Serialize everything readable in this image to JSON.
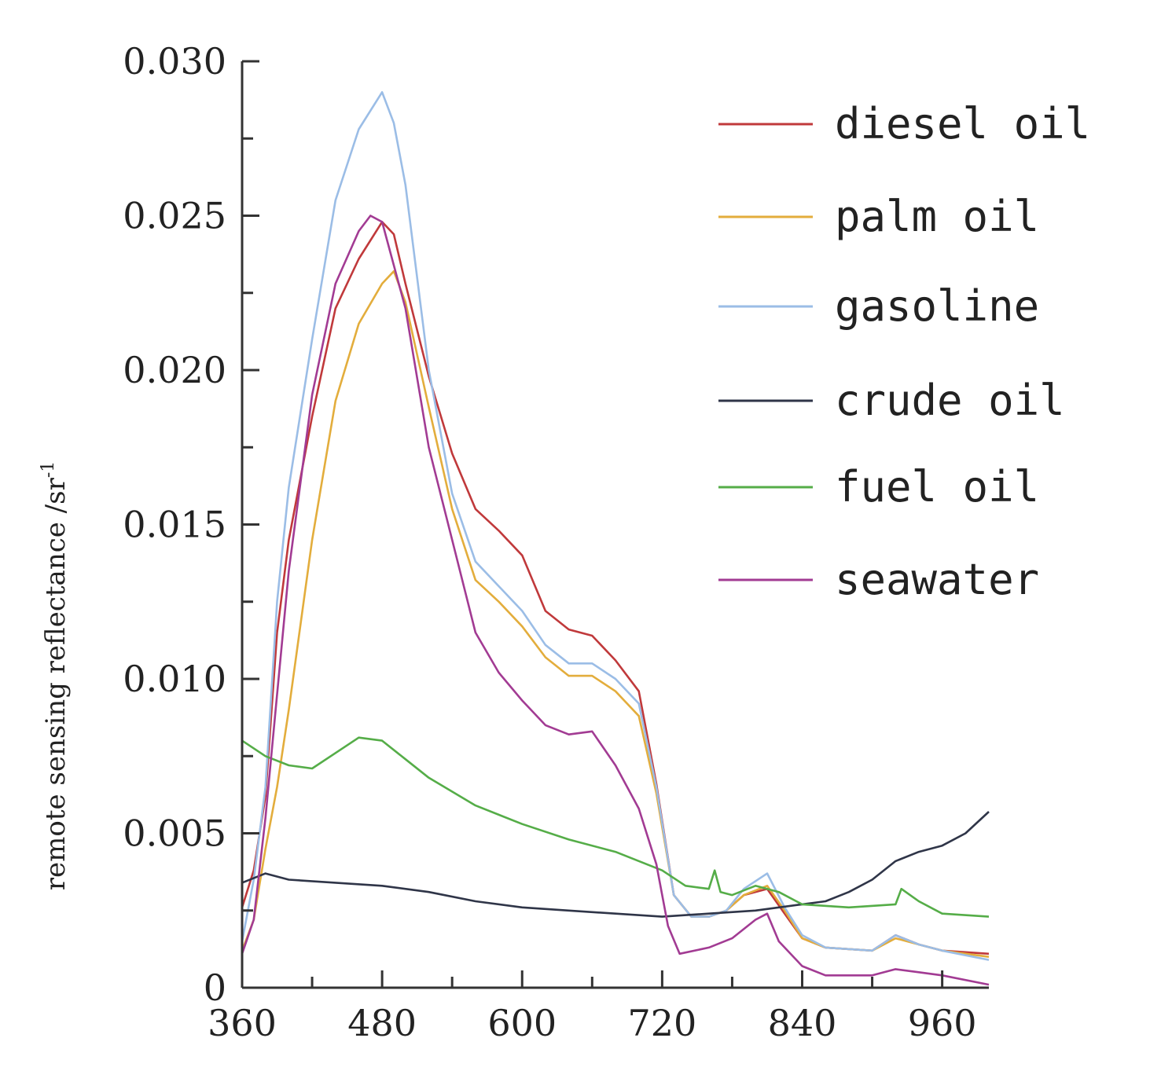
{
  "chart_data": {
    "type": "line",
    "title": "",
    "xlabel": "",
    "ylabel": "remote sensing reflectance /sr",
    "ylabel_superscript": "-1",
    "xlim": [
      360,
      1000
    ],
    "ylim": [
      0,
      0.03
    ],
    "x_ticks": [
      "360",
      "480",
      "600",
      "720",
      "840",
      "960"
    ],
    "y_ticks": [
      "0",
      "0.005",
      "0.010",
      "0.015",
      "0.020",
      "0.025",
      "0.030"
    ],
    "legend_position": "top-right",
    "grid": false,
    "series": [
      {
        "name": "diesel oil",
        "color": "#c0393b",
        "points": [
          [
            360,
            0.0026
          ],
          [
            370,
            0.0038
          ],
          [
            380,
            0.0062
          ],
          [
            390,
            0.0115
          ],
          [
            400,
            0.0145
          ],
          [
            420,
            0.0185
          ],
          [
            440,
            0.022
          ],
          [
            460,
            0.0236
          ],
          [
            480,
            0.0248
          ],
          [
            490,
            0.0244
          ],
          [
            500,
            0.0228
          ],
          [
            520,
            0.0198
          ],
          [
            540,
            0.0173
          ],
          [
            560,
            0.0155
          ],
          [
            580,
            0.0148
          ],
          [
            600,
            0.014
          ],
          [
            620,
            0.0122
          ],
          [
            640,
            0.0116
          ],
          [
            660,
            0.0114
          ],
          [
            680,
            0.0106
          ],
          [
            700,
            0.0096
          ],
          [
            715,
            0.0066
          ],
          [
            730,
            0.003
          ],
          [
            745,
            0.0023
          ],
          [
            760,
            0.0023
          ],
          [
            775,
            0.0025
          ],
          [
            790,
            0.003
          ],
          [
            810,
            0.0032
          ],
          [
            825,
            0.0024
          ],
          [
            840,
            0.0016
          ],
          [
            860,
            0.0013
          ],
          [
            900,
            0.0012
          ],
          [
            920,
            0.0017
          ],
          [
            940,
            0.0014
          ],
          [
            960,
            0.0012
          ],
          [
            1000,
            0.0011
          ]
        ]
      },
      {
        "name": "palm oil",
        "color": "#e3ad3c",
        "points": [
          [
            360,
            0.0012
          ],
          [
            370,
            0.0022
          ],
          [
            380,
            0.0045
          ],
          [
            390,
            0.0065
          ],
          [
            400,
            0.009
          ],
          [
            420,
            0.0145
          ],
          [
            440,
            0.019
          ],
          [
            460,
            0.0215
          ],
          [
            480,
            0.0228
          ],
          [
            490,
            0.0232
          ],
          [
            500,
            0.0222
          ],
          [
            520,
            0.0188
          ],
          [
            540,
            0.0155
          ],
          [
            560,
            0.0132
          ],
          [
            580,
            0.0125
          ],
          [
            600,
            0.0117
          ],
          [
            620,
            0.0107
          ],
          [
            640,
            0.0101
          ],
          [
            660,
            0.0101
          ],
          [
            680,
            0.0096
          ],
          [
            700,
            0.0088
          ],
          [
            715,
            0.0063
          ],
          [
            730,
            0.003
          ],
          [
            745,
            0.0023
          ],
          [
            760,
            0.0023
          ],
          [
            775,
            0.0025
          ],
          [
            790,
            0.003
          ],
          [
            810,
            0.0033
          ],
          [
            825,
            0.0025
          ],
          [
            840,
            0.0016
          ],
          [
            860,
            0.0013
          ],
          [
            900,
            0.0012
          ],
          [
            920,
            0.0016
          ],
          [
            940,
            0.0014
          ],
          [
            960,
            0.0012
          ],
          [
            1000,
            0.001
          ]
        ]
      },
      {
        "name": "gasoline",
        "color": "#9bbde6",
        "points": [
          [
            360,
            0.0015
          ],
          [
            370,
            0.0035
          ],
          [
            380,
            0.0065
          ],
          [
            390,
            0.0125
          ],
          [
            400,
            0.0162
          ],
          [
            420,
            0.021
          ],
          [
            440,
            0.0255
          ],
          [
            460,
            0.0278
          ],
          [
            480,
            0.029
          ],
          [
            490,
            0.028
          ],
          [
            500,
            0.026
          ],
          [
            520,
            0.02
          ],
          [
            540,
            0.016
          ],
          [
            560,
            0.0138
          ],
          [
            580,
            0.013
          ],
          [
            600,
            0.0122
          ],
          [
            620,
            0.0111
          ],
          [
            640,
            0.0105
          ],
          [
            660,
            0.0105
          ],
          [
            680,
            0.01
          ],
          [
            700,
            0.0092
          ],
          [
            715,
            0.0065
          ],
          [
            730,
            0.003
          ],
          [
            745,
            0.0023
          ],
          [
            760,
            0.0023
          ],
          [
            775,
            0.0025
          ],
          [
            790,
            0.0032
          ],
          [
            810,
            0.0037
          ],
          [
            825,
            0.0026
          ],
          [
            840,
            0.0017
          ],
          [
            860,
            0.0013
          ],
          [
            900,
            0.0012
          ],
          [
            920,
            0.0017
          ],
          [
            940,
            0.0014
          ],
          [
            960,
            0.0012
          ],
          [
            1000,
            0.0009
          ]
        ]
      },
      {
        "name": "crude oil",
        "color": "#2f3548",
        "points": [
          [
            360,
            0.0034
          ],
          [
            380,
            0.0037
          ],
          [
            400,
            0.0035
          ],
          [
            440,
            0.0034
          ],
          [
            480,
            0.0033
          ],
          [
            520,
            0.0031
          ],
          [
            560,
            0.0028
          ],
          [
            600,
            0.0026
          ],
          [
            640,
            0.0025
          ],
          [
            680,
            0.0024
          ],
          [
            720,
            0.0023
          ],
          [
            760,
            0.0024
          ],
          [
            800,
            0.0025
          ],
          [
            840,
            0.0027
          ],
          [
            860,
            0.0028
          ],
          [
            880,
            0.0031
          ],
          [
            900,
            0.0035
          ],
          [
            920,
            0.0041
          ],
          [
            940,
            0.0044
          ],
          [
            960,
            0.0046
          ],
          [
            980,
            0.005
          ],
          [
            1000,
            0.0057
          ]
        ]
      },
      {
        "name": "fuel oil",
        "color": "#55ad48",
        "points": [
          [
            360,
            0.008
          ],
          [
            380,
            0.0075
          ],
          [
            400,
            0.0072
          ],
          [
            420,
            0.0071
          ],
          [
            440,
            0.0076
          ],
          [
            460,
            0.0081
          ],
          [
            480,
            0.008
          ],
          [
            500,
            0.0074
          ],
          [
            520,
            0.0068
          ],
          [
            560,
            0.0059
          ],
          [
            600,
            0.0053
          ],
          [
            640,
            0.0048
          ],
          [
            680,
            0.0044
          ],
          [
            720,
            0.0038
          ],
          [
            740,
            0.0033
          ],
          [
            760,
            0.0032
          ],
          [
            765,
            0.0038
          ],
          [
            770,
            0.0031
          ],
          [
            780,
            0.003
          ],
          [
            800,
            0.0033
          ],
          [
            820,
            0.0031
          ],
          [
            840,
            0.0027
          ],
          [
            880,
            0.0026
          ],
          [
            920,
            0.0027
          ],
          [
            925,
            0.0032
          ],
          [
            940,
            0.0028
          ],
          [
            960,
            0.0024
          ],
          [
            1000,
            0.0023
          ]
        ]
      },
      {
        "name": "seawater",
        "color": "#a23b93",
        "points": [
          [
            360,
            0.0011
          ],
          [
            370,
            0.0022
          ],
          [
            380,
            0.0055
          ],
          [
            390,
            0.0095
          ],
          [
            400,
            0.0135
          ],
          [
            420,
            0.0192
          ],
          [
            440,
            0.0228
          ],
          [
            460,
            0.0245
          ],
          [
            470,
            0.025
          ],
          [
            480,
            0.0248
          ],
          [
            500,
            0.022
          ],
          [
            520,
            0.0175
          ],
          [
            540,
            0.0145
          ],
          [
            560,
            0.0115
          ],
          [
            580,
            0.0102
          ],
          [
            600,
            0.0093
          ],
          [
            620,
            0.0085
          ],
          [
            640,
            0.0082
          ],
          [
            660,
            0.0083
          ],
          [
            680,
            0.0072
          ],
          [
            700,
            0.0058
          ],
          [
            715,
            0.004
          ],
          [
            725,
            0.002
          ],
          [
            735,
            0.0011
          ],
          [
            760,
            0.0013
          ],
          [
            780,
            0.0016
          ],
          [
            800,
            0.0022
          ],
          [
            810,
            0.0024
          ],
          [
            820,
            0.0015
          ],
          [
            840,
            0.0007
          ],
          [
            860,
            0.0004
          ],
          [
            900,
            0.0004
          ],
          [
            920,
            0.0006
          ],
          [
            940,
            0.0005
          ],
          [
            960,
            0.0004
          ],
          [
            1000,
            0.0001
          ]
        ]
      }
    ]
  }
}
